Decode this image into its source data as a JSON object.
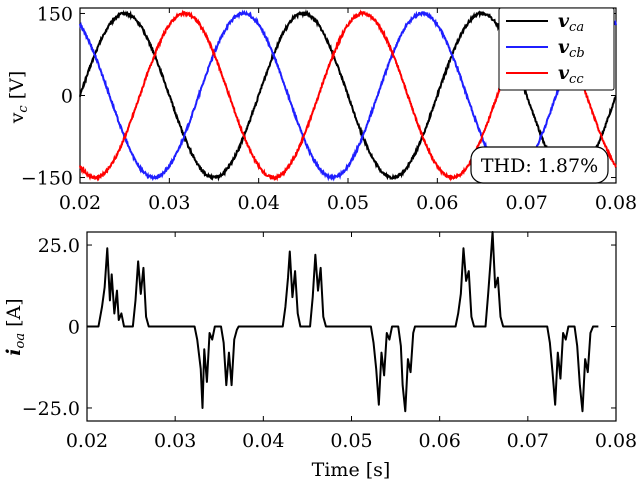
{
  "chart_data": [
    {
      "type": "line",
      "ylabel": "v_c [V]",
      "xlim": [
        0.02,
        0.08
      ],
      "ylim": [
        -160,
        160
      ],
      "x_ticks": [
        "0.02",
        "0.03",
        "0.04",
        "0.05",
        "0.06",
        "0.07",
        "0.08"
      ],
      "y_ticks": [
        "150",
        "0",
        "−150"
      ],
      "y_tick_values": [
        150,
        0,
        -150
      ],
      "amplitude": 150,
      "frequency_hz": 50,
      "phase_peak_times": {
        "vca": 0.025,
        "vcb": 0.0383,
        "vcc": 0.0317
      },
      "series": [
        {
          "name": "v_ca",
          "color": "#000000"
        },
        {
          "name": "v_cb",
          "color": "#1f1fff"
        },
        {
          "name": "v_cc",
          "color": "#ff0000"
        }
      ],
      "legend_position": "top-right",
      "annotation": "THD: 1.87%"
    },
    {
      "type": "line",
      "ylabel": "i_oa [A]",
      "xlabel": "Time [s]",
      "xlim": [
        0.02,
        0.08
      ],
      "ylim": [
        -29,
        29
      ],
      "x_ticks": [
        "0.02",
        "0.03",
        "0.04",
        "0.05",
        "0.06",
        "0.07",
        "0.08"
      ],
      "y_ticks": [
        "25.0",
        "0",
        "−25.0"
      ],
      "y_tick_values": [
        25,
        0,
        -25
      ],
      "series": [
        {
          "name": "i_oa",
          "color": "#000000",
          "points": [
            [
              0.02,
              0
            ],
            [
              0.0213,
              0
            ],
            [
              0.0217,
              6
            ],
            [
              0.022,
              12
            ],
            [
              0.0223,
              24
            ],
            [
              0.0226,
              8
            ],
            [
              0.0228,
              16
            ],
            [
              0.0231,
              4
            ],
            [
              0.0234,
              11
            ],
            [
              0.0236,
              2
            ],
            [
              0.0239,
              4
            ],
            [
              0.0242,
              0
            ],
            [
              0.0252,
              0
            ],
            [
              0.0255,
              8
            ],
            [
              0.0258,
              20
            ],
            [
              0.0261,
              10
            ],
            [
              0.0264,
              18
            ],
            [
              0.0267,
              3
            ],
            [
              0.027,
              0
            ],
            [
              0.0322,
              0
            ],
            [
              0.0325,
              -4
            ],
            [
              0.0329,
              -13
            ],
            [
              0.0331,
              -25
            ],
            [
              0.0333,
              -7
            ],
            [
              0.0336,
              -17
            ],
            [
              0.0339,
              -2
            ],
            [
              0.0342,
              -4
            ],
            [
              0.0345,
              0
            ],
            [
              0.0352,
              0
            ],
            [
              0.0355,
              -5
            ],
            [
              0.0358,
              -18
            ],
            [
              0.0361,
              -8
            ],
            [
              0.0364,
              -18
            ],
            [
              0.0367,
              -4
            ],
            [
              0.037,
              -1
            ],
            [
              0.0372,
              0
            ],
            [
              0.0422,
              0
            ],
            [
              0.0425,
              6
            ],
            [
              0.0428,
              15
            ],
            [
              0.043,
              23
            ],
            [
              0.0433,
              9
            ],
            [
              0.0436,
              17
            ],
            [
              0.0439,
              4
            ],
            [
              0.0442,
              0
            ],
            [
              0.0453,
              0
            ],
            [
              0.0456,
              9
            ],
            [
              0.0459,
              22
            ],
            [
              0.0462,
              11
            ],
            [
              0.0465,
              18
            ],
            [
              0.0468,
              3
            ],
            [
              0.0471,
              0
            ],
            [
              0.0522,
              0
            ],
            [
              0.0525,
              -5
            ],
            [
              0.0528,
              -13
            ],
            [
              0.0531,
              -24
            ],
            [
              0.0534,
              -8
            ],
            [
              0.0537,
              -15
            ],
            [
              0.054,
              -2
            ],
            [
              0.0543,
              -4
            ],
            [
              0.0546,
              0
            ],
            [
              0.0553,
              0
            ],
            [
              0.0556,
              -6
            ],
            [
              0.0558,
              -18
            ],
            [
              0.0561,
              -26
            ],
            [
              0.0564,
              -10
            ],
            [
              0.0567,
              -14
            ],
            [
              0.057,
              -2
            ],
            [
              0.0572,
              0
            ],
            [
              0.0618,
              0
            ],
            [
              0.0621,
              4
            ],
            [
              0.0624,
              10
            ],
            [
              0.0627,
              24
            ],
            [
              0.063,
              14
            ],
            [
              0.0633,
              17
            ],
            [
              0.0636,
              3
            ],
            [
              0.0639,
              0
            ],
            [
              0.0652,
              0
            ],
            [
              0.0655,
              10
            ],
            [
              0.0658,
              21
            ],
            [
              0.066,
              29
            ],
            [
              0.0663,
              12
            ],
            [
              0.0666,
              15
            ],
            [
              0.0669,
              3
            ],
            [
              0.0672,
              0
            ],
            [
              0.0722,
              0
            ],
            [
              0.0725,
              -5
            ],
            [
              0.0728,
              -14
            ],
            [
              0.0731,
              -24
            ],
            [
              0.0734,
              -8
            ],
            [
              0.0737,
              -16
            ],
            [
              0.074,
              -2
            ],
            [
              0.0743,
              -4
            ],
            [
              0.0746,
              0
            ],
            [
              0.0753,
              0
            ],
            [
              0.0756,
              -6
            ],
            [
              0.0759,
              -18
            ],
            [
              0.0762,
              -26
            ],
            [
              0.0765,
              -10
            ],
            [
              0.0768,
              -14
            ],
            [
              0.0771,
              -2
            ],
            [
              0.0774,
              0
            ],
            [
              0.078,
              0
            ]
          ]
        }
      ]
    }
  ]
}
